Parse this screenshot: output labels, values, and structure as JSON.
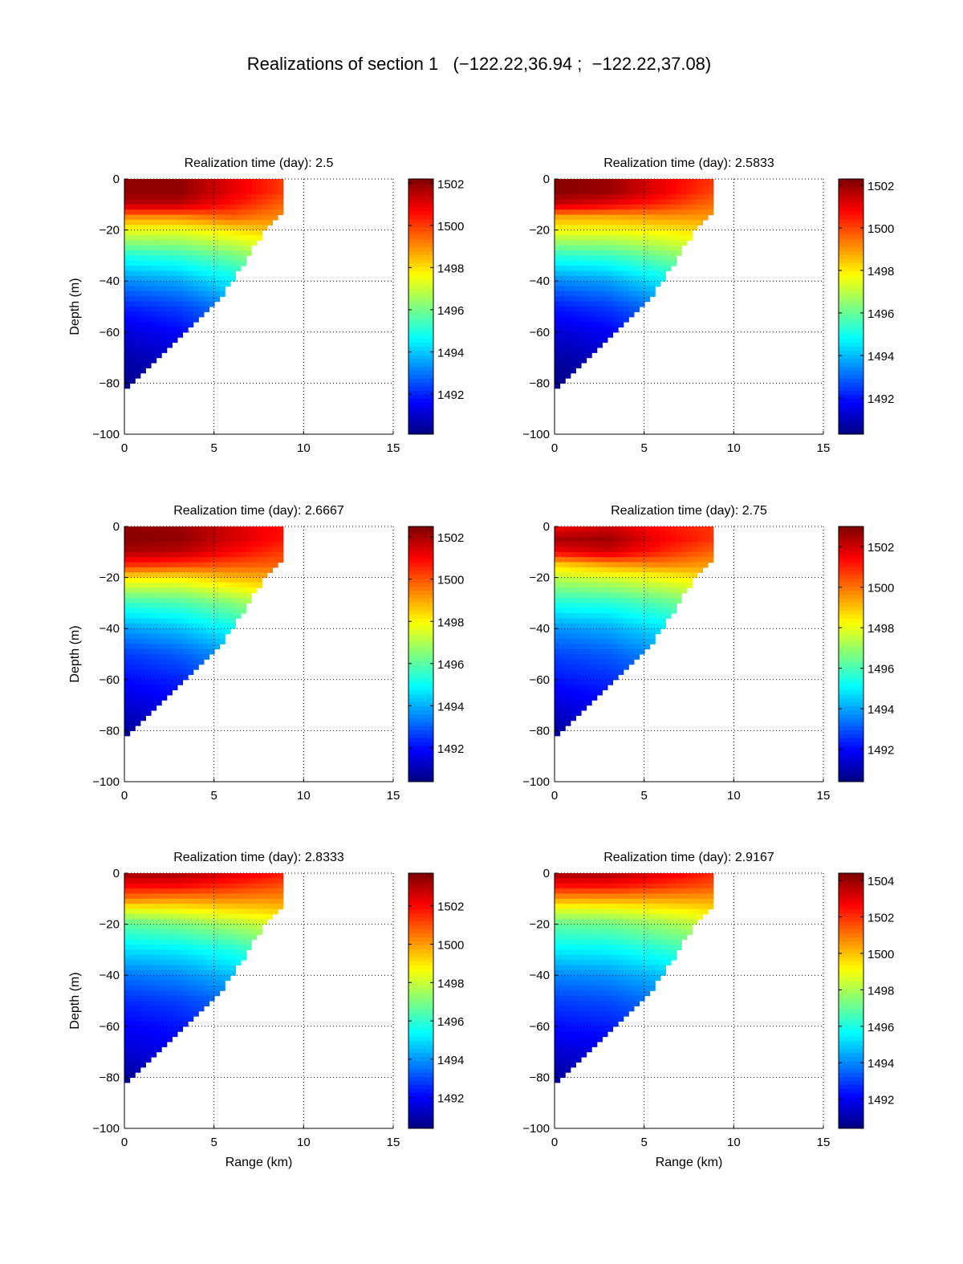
{
  "suptitle": "Realizations of section 1   (−122.22,36.94 ;  −122.22,37.08)",
  "colormap": "jet",
  "chart_data": [
    {
      "type": "heatmap",
      "title": "Realization time (day): 2.5",
      "xlabel": "",
      "ylabel": "Depth (m)",
      "xlim": [
        0,
        15
      ],
      "ylim": [
        -100,
        0
      ],
      "xticks": [
        "0",
        "5",
        "10",
        "15"
      ],
      "yticks": [
        "0",
        "−20",
        "−40",
        "−60",
        "−80",
        "−100"
      ],
      "grid": true,
      "clim": [
        1490.1,
        1502.2
      ],
      "cticks": [
        "1492",
        "1494",
        "1496",
        "1498",
        "1500",
        "1502"
      ],
      "ranges": [
        0,
        3,
        6,
        8.85
      ],
      "depths": [
        0,
        -5,
        -10,
        -15,
        -20,
        -30,
        -40,
        -50,
        -60,
        -70,
        -80
      ],
      "values": [
        [
          1502,
          1502,
          1501,
          1500
        ],
        [
          1502,
          1502,
          1501,
          1500
        ],
        [
          1501.5,
          1501.5,
          1500.5,
          1499.5
        ],
        [
          1499,
          1499,
          1499.5,
          1499
        ],
        [
          1497.5,
          1497.5,
          1498,
          1498.5
        ],
        [
          1495,
          1495.3,
          1496,
          1497
        ],
        [
          1493.3,
          1493.6,
          1494.5,
          1495.5
        ],
        [
          1492,
          1492.4,
          1493.2,
          1494
        ],
        [
          1491.2,
          1491.6,
          1492.5,
          1493
        ],
        [
          1490.6,
          1491,
          1492,
          1492.5
        ],
        [
          1490.3,
          1490.7,
          1491.5,
          1492
        ]
      ],
      "bottom": {
        "range": [
          0,
          1,
          2,
          3,
          4,
          5,
          6,
          7,
          8,
          8.85
        ],
        "depth": [
          -83,
          -77,
          -70,
          -63,
          -56,
          -50,
          -42,
          -31,
          -20,
          -13
        ]
      }
    },
    {
      "type": "heatmap",
      "title": "Realization time (day): 2.5833",
      "xlabel": "",
      "ylabel": "",
      "xlim": [
        0,
        15
      ],
      "ylim": [
        -100,
        0
      ],
      "xticks": [
        "0",
        "5",
        "10",
        "15"
      ],
      "yticks": [
        "0",
        "−20",
        "−40",
        "−60",
        "−80",
        "−100"
      ],
      "grid": true,
      "clim": [
        1490.3,
        1502.3
      ],
      "cticks": [
        "1492",
        "1494",
        "1496",
        "1498",
        "1500",
        "1502"
      ],
      "ranges": [
        0,
        3,
        6,
        8.85
      ],
      "depths": [
        0,
        -5,
        -10,
        -15,
        -20,
        -30,
        -40,
        -50,
        -60,
        -70,
        -80
      ],
      "values": [
        [
          1502.2,
          1502,
          1501,
          1500.2
        ],
        [
          1502.2,
          1502,
          1501,
          1500
        ],
        [
          1501.5,
          1501,
          1500.3,
          1499.5
        ],
        [
          1498.8,
          1498.8,
          1499,
          1499
        ],
        [
          1497.8,
          1497.8,
          1498,
          1498.3
        ],
        [
          1495.3,
          1495.5,
          1496.2,
          1497
        ],
        [
          1493.4,
          1493.7,
          1494.6,
          1495.5
        ],
        [
          1492.1,
          1492.5,
          1493.3,
          1494
        ],
        [
          1491.3,
          1491.7,
          1492.6,
          1493
        ],
        [
          1490.7,
          1491.1,
          1492,
          1492.5
        ],
        [
          1490.4,
          1490.8,
          1491.5,
          1492
        ]
      ],
      "bottom": {
        "range": [
          0,
          1,
          2,
          3,
          4,
          5,
          6,
          7,
          8,
          8.85
        ],
        "depth": [
          -83,
          -77,
          -70,
          -63,
          -56,
          -50,
          -42,
          -31,
          -20,
          -13
        ]
      }
    },
    {
      "type": "heatmap",
      "title": "Realization time (day): 2.6667",
      "xlabel": "",
      "ylabel": "Depth (m)",
      "xlim": [
        0,
        15
      ],
      "ylim": [
        -100,
        0
      ],
      "xticks": [
        "0",
        "5",
        "10",
        "15"
      ],
      "yticks": [
        "0",
        "−20",
        "−40",
        "−60",
        "−80",
        "−100"
      ],
      "grid": true,
      "clim": [
        1490.4,
        1502.5
      ],
      "cticks": [
        "1492",
        "1494",
        "1496",
        "1498",
        "1500",
        "1502"
      ],
      "ranges": [
        0,
        3,
        6,
        8.85
      ],
      "depths": [
        0,
        -5,
        -10,
        -15,
        -20,
        -30,
        -40,
        -50,
        -60,
        -70,
        -80
      ],
      "values": [
        [
          1502.3,
          1502.2,
          1501.5,
          1500.8
        ],
        [
          1502.4,
          1502.3,
          1501.5,
          1500.8
        ],
        [
          1502,
          1501.8,
          1501,
          1500.3
        ],
        [
          1500.5,
          1500.3,
          1500,
          1499.8
        ],
        [
          1498.3,
          1498.2,
          1498.8,
          1499
        ],
        [
          1495.6,
          1495.8,
          1496.5,
          1497.5
        ],
        [
          1493.8,
          1494.2,
          1495,
          1496
        ],
        [
          1492.6,
          1493,
          1493.8,
          1494.5
        ],
        [
          1492,
          1492.3,
          1493,
          1493.5
        ],
        [
          1491.4,
          1491.8,
          1492.5,
          1493
        ],
        [
          1490.7,
          1491.2,
          1492,
          1492.5
        ]
      ],
      "bottom": {
        "range": [
          0,
          1,
          2,
          3,
          4,
          5,
          6,
          7,
          8,
          8.85
        ],
        "depth": [
          -83,
          -77,
          -70,
          -63,
          -56,
          -50,
          -42,
          -31,
          -20,
          -13
        ]
      }
    },
    {
      "type": "heatmap",
      "title": "Realization time (day): 2.75",
      "xlabel": "",
      "ylabel": "",
      "xlim": [
        0,
        15
      ],
      "ylim": [
        -100,
        0
      ],
      "xticks": [
        "0",
        "5",
        "10",
        "15"
      ],
      "yticks": [
        "0",
        "−20",
        "−40",
        "−60",
        "−80",
        "−100"
      ],
      "grid": true,
      "clim": [
        1490.4,
        1503.0
      ],
      "cticks": [
        "1492",
        "1494",
        "1496",
        "1498",
        "1500",
        "1502"
      ],
      "ranges": [
        0,
        3,
        6,
        8.85
      ],
      "depths": [
        0,
        -5,
        -10,
        -15,
        -20,
        -30,
        -40,
        -50,
        -60,
        -70,
        -80
      ],
      "values": [
        [
          1501.5,
          1502,
          1501.2,
          1500.8
        ],
        [
          1502.5,
          1502.6,
          1501.5,
          1500.8
        ],
        [
          1501.5,
          1502,
          1501,
          1500.2
        ],
        [
          1498.8,
          1499.5,
          1499.8,
          1499.5
        ],
        [
          1497.5,
          1497.8,
          1498.2,
          1498.8
        ],
        [
          1495.5,
          1495.6,
          1496.2,
          1497
        ],
        [
          1493.8,
          1494.1,
          1494.8,
          1495.8
        ],
        [
          1492.8,
          1493.1,
          1493.8,
          1494.5
        ],
        [
          1492.2,
          1492.5,
          1493,
          1493.5
        ],
        [
          1491.5,
          1491.9,
          1492.5,
          1493
        ],
        [
          1490.8,
          1491.3,
          1492,
          1492.5
        ]
      ],
      "bottom": {
        "range": [
          0,
          1,
          2,
          3,
          4,
          5,
          6,
          7,
          8,
          8.85
        ],
        "depth": [
          -83,
          -77,
          -70,
          -63,
          -56,
          -50,
          -42,
          -31,
          -20,
          -13
        ]
      }
    },
    {
      "type": "heatmap",
      "title": "Realization time (day): 2.8333",
      "xlabel": "Range (km)",
      "ylabel": "Depth (m)",
      "xlim": [
        0,
        15
      ],
      "ylim": [
        -100,
        0
      ],
      "xticks": [
        "0",
        "5",
        "10",
        "15"
      ],
      "yticks": [
        "0",
        "−20",
        "−40",
        "−60",
        "−80",
        "−100"
      ],
      "grid": true,
      "clim": [
        1490.4,
        1503.7
      ],
      "cticks": [
        "1492",
        "1494",
        "1496",
        "1498",
        "1500",
        "1502"
      ],
      "ranges": [
        0,
        3,
        6,
        8.85
      ],
      "depths": [
        0,
        -5,
        -10,
        -15,
        -20,
        -30,
        -40,
        -50,
        -60,
        -70,
        -80
      ],
      "values": [
        [
          1503.3,
          1503.2,
          1502.5,
          1501.8
        ],
        [
          1502,
          1502,
          1501.5,
          1501
        ],
        [
          1500.5,
          1500.2,
          1500.3,
          1500.2
        ],
        [
          1498.2,
          1498.5,
          1499,
          1499.3
        ],
        [
          1496.6,
          1497,
          1497.6,
          1498.3
        ],
        [
          1495,
          1495.2,
          1495.8,
          1496.8
        ],
        [
          1493.6,
          1493.9,
          1494.5,
          1495.5
        ],
        [
          1492.6,
          1492.9,
          1493.5,
          1494.3
        ],
        [
          1492,
          1492.3,
          1492.8,
          1493.3
        ],
        [
          1491.5,
          1491.8,
          1492.3,
          1492.8
        ],
        [
          1490.7,
          1491.2,
          1491.8,
          1492.3
        ]
      ],
      "bottom": {
        "range": [
          0,
          1,
          2,
          3,
          4,
          5,
          6,
          7,
          8,
          8.85
        ],
        "depth": [
          -83,
          -77,
          -70,
          -63,
          -56,
          -50,
          -42,
          -31,
          -20,
          -13
        ]
      }
    },
    {
      "type": "heatmap",
      "title": "Realization time (day): 2.9167",
      "xlabel": "Range (km)",
      "ylabel": "",
      "xlim": [
        0,
        15
      ],
      "ylim": [
        -100,
        0
      ],
      "xticks": [
        "0",
        "5",
        "10",
        "15"
      ],
      "yticks": [
        "0",
        "−20",
        "−40",
        "−60",
        "−80",
        "−100"
      ],
      "grid": true,
      "clim": [
        1490.4,
        1504.4
      ],
      "cticks": [
        "1492",
        "1494",
        "1496",
        "1498",
        "1500",
        "1502",
        "1504"
      ],
      "ranges": [
        0,
        3,
        6,
        8.85
      ],
      "depths": [
        0,
        -5,
        -10,
        -15,
        -20,
        -30,
        -40,
        -50,
        -60,
        -70,
        -80
      ],
      "values": [
        [
          1504,
          1503.8,
          1503,
          1502.2
        ],
        [
          1502.5,
          1502.5,
          1502,
          1501.5
        ],
        [
          1500.5,
          1500.5,
          1500.5,
          1500.5
        ],
        [
          1498.5,
          1498.6,
          1499,
          1499.5
        ],
        [
          1497,
          1497.2,
          1497.8,
          1498.5
        ],
        [
          1495.5,
          1495.6,
          1496.2,
          1497
        ],
        [
          1494,
          1494.2,
          1494.8,
          1495.8
        ],
        [
          1493,
          1493.2,
          1493.8,
          1494.5
        ],
        [
          1492.3,
          1492.5,
          1493,
          1493.5
        ],
        [
          1491.5,
          1491.8,
          1492.4,
          1493
        ],
        [
          1490.8,
          1491.2,
          1491.8,
          1492.3
        ]
      ],
      "bottom": {
        "range": [
          0,
          1,
          2,
          3,
          4,
          5,
          6,
          7,
          8,
          8.85
        ],
        "depth": [
          -83,
          -77,
          -70,
          -63,
          -56,
          -50,
          -42,
          -31,
          -20,
          -13
        ]
      }
    }
  ]
}
